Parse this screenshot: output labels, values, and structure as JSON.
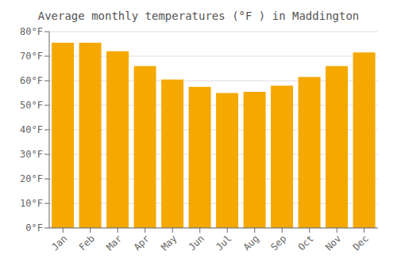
{
  "chart_data": {
    "type": "bar",
    "title": "Average monthly temperatures (°F ) in Maddington",
    "categories": [
      "Jan",
      "Feb",
      "Mar",
      "Apr",
      "May",
      "Jun",
      "Jul",
      "Aug",
      "Sep",
      "Oct",
      "Nov",
      "Dec"
    ],
    "values": [
      75.5,
      75.5,
      72,
      66,
      60.5,
      57.5,
      55,
      55.5,
      58,
      61.5,
      66,
      71.5
    ],
    "color": "#F5A800",
    "ylim": [
      0,
      80
    ],
    "yticks": [
      {
        "value": 0,
        "label": "0°F"
      },
      {
        "value": 10,
        "label": "10°F"
      },
      {
        "value": 20,
        "label": "20°F"
      },
      {
        "value": 30,
        "label": "30°F"
      },
      {
        "value": 40,
        "label": "40°F"
      },
      {
        "value": 50,
        "label": "50°F"
      },
      {
        "value": 60,
        "label": "60°F"
      },
      {
        "value": 70,
        "label": "70°F"
      },
      {
        "value": 80,
        "label": "80°F"
      }
    ],
    "grid": true
  }
}
